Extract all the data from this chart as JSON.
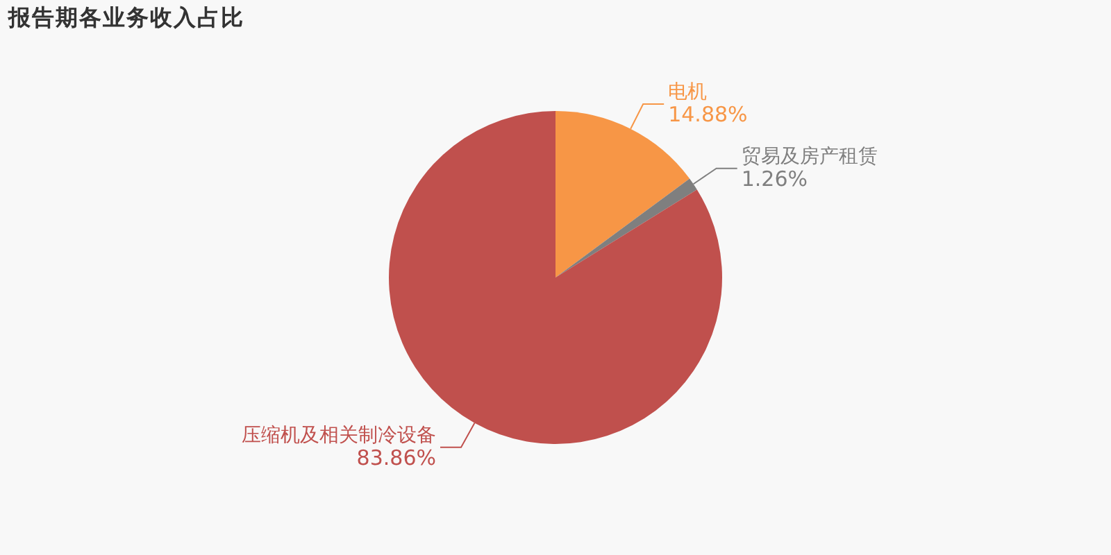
{
  "chart_data": {
    "type": "pie",
    "title": "报告期各业务收入占比",
    "categories": [
      "电机",
      "贸易及房产租赁",
      "压缩机及相关制冷设备"
    ],
    "values": [
      14.88,
      1.26,
      83.86
    ],
    "value_labels": [
      "14.88%",
      "1.26%",
      "83.86%"
    ],
    "colors": [
      "#f79646",
      "#7f7f7f",
      "#c0504d"
    ],
    "legend": false
  }
}
